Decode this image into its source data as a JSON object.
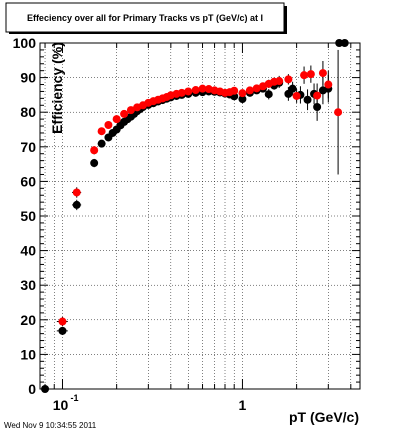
{
  "chart_data": {
    "type": "scatter",
    "title": "Effeciency over all for Primary Tracks vs pT (GeV/c) at I",
    "xlabel": "pT (GeV/c)",
    "ylabel": "Efficiency (%)",
    "x_scale": "log",
    "xlim": [
      0.075,
      4.5
    ],
    "ylim": [
      0,
      100
    ],
    "y_ticks": [
      0,
      10,
      20,
      30,
      40,
      50,
      60,
      70,
      80,
      90,
      100
    ],
    "x_tick_labels": [
      {
        "value": 0.1,
        "base": "10",
        "exponent": "-1"
      },
      {
        "value": 1,
        "text": "1"
      }
    ],
    "grid": true,
    "timestamp": "Wed Nov  9 10:34:55 2011",
    "series": [
      {
        "color": "#000000",
        "points": [
          {
            "x": 0.08,
            "y": 0,
            "xerr": 0.004,
            "yerr": 0
          },
          {
            "x": 0.1,
            "y": 16.8,
            "xerr": 0.007,
            "yerr": 1.2
          },
          {
            "x": 0.12,
            "y": 53.2,
            "xerr": 0.007,
            "yerr": 1.5
          },
          {
            "x": 0.15,
            "y": 65.3,
            "xerr": 0.005,
            "yerr": 1.2
          },
          {
            "x": 0.165,
            "y": 70.9,
            "yerr": 1.0
          },
          {
            "x": 0.18,
            "y": 72.7,
            "yerr": 0.9
          },
          {
            "x": 0.19,
            "y": 74.0
          },
          {
            "x": 0.2,
            "y": 75.0
          },
          {
            "x": 0.21,
            "y": 76.2
          },
          {
            "x": 0.22,
            "y": 77.2
          },
          {
            "x": 0.23,
            "y": 78.0
          },
          {
            "x": 0.24,
            "y": 78.7
          },
          {
            "x": 0.25,
            "y": 79.5
          },
          {
            "x": 0.26,
            "y": 80.3
          },
          {
            "x": 0.27,
            "y": 80.9
          },
          {
            "x": 0.28,
            "y": 81.5
          },
          {
            "x": 0.3,
            "y": 82.1
          },
          {
            "x": 0.32,
            "y": 82.6
          },
          {
            "x": 0.34,
            "y": 83.1
          },
          {
            "x": 0.36,
            "y": 83.5
          },
          {
            "x": 0.38,
            "y": 83.9
          },
          {
            "x": 0.4,
            "y": 84.3
          },
          {
            "x": 0.43,
            "y": 84.7
          },
          {
            "x": 0.46,
            "y": 85.0
          },
          {
            "x": 0.5,
            "y": 85.3
          },
          {
            "x": 0.55,
            "y": 85.6
          },
          {
            "x": 0.6,
            "y": 85.8
          },
          {
            "x": 0.65,
            "y": 86.0
          },
          {
            "x": 0.7,
            "y": 85.9
          },
          {
            "x": 0.75,
            "y": 85.7
          },
          {
            "x": 0.8,
            "y": 85.4
          },
          {
            "x": 0.85,
            "y": 85.1
          },
          {
            "x": 0.9,
            "y": 84.6
          },
          {
            "x": 1.0,
            "y": 83.8,
            "yerr": 1.2
          },
          {
            "x": 1.1,
            "y": 85.6,
            "yerr": 1.0
          },
          {
            "x": 1.2,
            "y": 86.3
          },
          {
            "x": 1.3,
            "y": 86.8
          },
          {
            "x": 1.4,
            "y": 85.2,
            "yerr": 1.5
          },
          {
            "x": 1.5,
            "y": 87.7,
            "yerr": 1.2
          },
          {
            "x": 1.6,
            "y": 88.5,
            "yerr": 1.5
          },
          {
            "x": 1.8,
            "y": 85.3,
            "yerr": 2.0
          },
          {
            "x": 1.9,
            "y": 86.8,
            "yerr": 2.0
          },
          {
            "x": 2.1,
            "y": 85.0,
            "yerr": 2.5
          },
          {
            "x": 2.3,
            "y": 83.6,
            "yerr": 3.0
          },
          {
            "x": 2.5,
            "y": 85.3,
            "yerr": 3.0
          },
          {
            "x": 2.6,
            "y": 81.5,
            "yerr": 4.0
          },
          {
            "x": 2.8,
            "y": 86.3,
            "yerr": 4.0
          },
          {
            "x": 3.0,
            "y": 86.8,
            "yerr": 4.0
          },
          {
            "x": 3.45,
            "y": 100,
            "yerr": 0
          },
          {
            "x": 3.7,
            "y": 100,
            "yerr": 0
          }
        ]
      },
      {
        "color": "#ff0000",
        "points": [
          {
            "x": 0.1,
            "y": 19.5,
            "xerr": 0.007,
            "yerr": 1.3
          },
          {
            "x": 0.12,
            "y": 56.8,
            "xerr": 0.007,
            "yerr": 1.5
          },
          {
            "x": 0.15,
            "y": 69.0,
            "xerr": 0.005,
            "yerr": 1.2
          },
          {
            "x": 0.165,
            "y": 74.5
          },
          {
            "x": 0.18,
            "y": 76.3
          },
          {
            "x": 0.2,
            "y": 78.0
          },
          {
            "x": 0.22,
            "y": 79.5
          },
          {
            "x": 0.24,
            "y": 80.6
          },
          {
            "x": 0.26,
            "y": 81.4
          },
          {
            "x": 0.28,
            "y": 82.0
          },
          {
            "x": 0.3,
            "y": 82.7
          },
          {
            "x": 0.32,
            "y": 83.2
          },
          {
            "x": 0.34,
            "y": 83.6
          },
          {
            "x": 0.36,
            "y": 84.0
          },
          {
            "x": 0.38,
            "y": 84.4
          },
          {
            "x": 0.4,
            "y": 84.9
          },
          {
            "x": 0.43,
            "y": 85.3
          },
          {
            "x": 0.46,
            "y": 85.6
          },
          {
            "x": 0.5,
            "y": 86.0
          },
          {
            "x": 0.55,
            "y": 86.4
          },
          {
            "x": 0.6,
            "y": 86.8
          },
          {
            "x": 0.65,
            "y": 86.7
          },
          {
            "x": 0.7,
            "y": 86.3
          },
          {
            "x": 0.75,
            "y": 86.0
          },
          {
            "x": 0.8,
            "y": 85.6
          },
          {
            "x": 0.85,
            "y": 85.8
          },
          {
            "x": 0.9,
            "y": 86.2
          },
          {
            "x": 1.0,
            "y": 85.5,
            "yerr": 1.0
          },
          {
            "x": 1.1,
            "y": 86.3,
            "yerr": 1.0
          },
          {
            "x": 1.2,
            "y": 86.9
          },
          {
            "x": 1.3,
            "y": 87.5
          },
          {
            "x": 1.4,
            "y": 88.2,
            "yerr": 1.2
          },
          {
            "x": 1.5,
            "y": 88.8,
            "yerr": 1.2
          },
          {
            "x": 1.6,
            "y": 89.0,
            "yerr": 1.5
          },
          {
            "x": 1.8,
            "y": 89.5,
            "yerr": 1.5
          },
          {
            "x": 2.0,
            "y": 84.7,
            "yerr": 2.0
          },
          {
            "x": 2.2,
            "y": 90.7,
            "yerr": 2.5
          },
          {
            "x": 2.4,
            "y": 91.0,
            "yerr": 2.5
          },
          {
            "x": 2.6,
            "y": 84.8,
            "yerr": 3.5
          },
          {
            "x": 2.8,
            "y": 91.3,
            "yerr": 3.5
          },
          {
            "x": 3.0,
            "y": 88.0,
            "yerr": 4.0
          },
          {
            "x": 3.4,
            "y": 80.0,
            "yerr": 18.0
          }
        ]
      }
    ]
  }
}
